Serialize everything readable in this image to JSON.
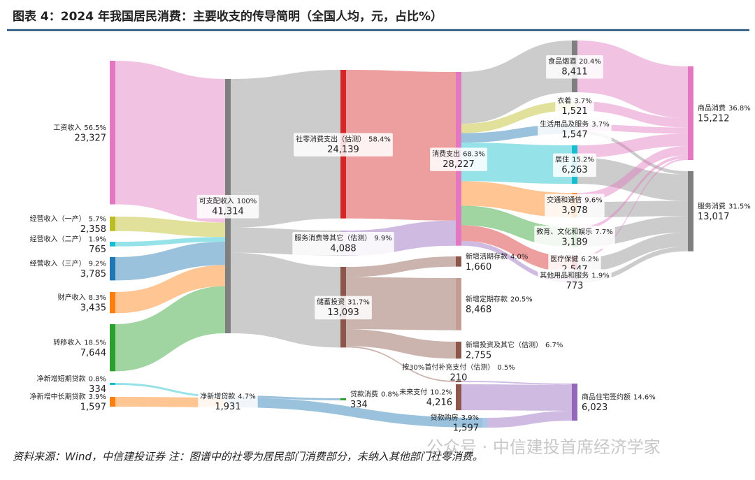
{
  "chart_data": {
    "type": "sankey",
    "title": "图表 4：2024 年我国居民消费：主要收支的传导简明（全国人均，元，占比%）",
    "note": "资料来源：Wind，中信建投证券 注：图谱中的社零为居民部门消费部分，未纳入其他部门社零消费。",
    "watermark": "公众号 · 中信建投首席经济学家",
    "nodes": [
      {
        "name": "工资收入",
        "share": 56.5,
        "share_label": "56.5%",
        "value": 23327,
        "value_label": "23,327",
        "color": "#e377c2"
      },
      {
        "name": "经营收入（一产）",
        "share": 5.7,
        "share_label": "5.7%",
        "value": 2358,
        "value_label": "2,358",
        "color": "#bcbd22"
      },
      {
        "name": "经营收入（二产）",
        "share": 1.9,
        "share_label": "1.9%",
        "value": 765,
        "color": "#17becf"
      },
      {
        "name": "经营收入（三产）",
        "share": 9.2,
        "share_label": "9.2%",
        "value": 3785,
        "value_label": "3,785",
        "color": "#1f77b4"
      },
      {
        "name": "财产收入",
        "share": 8.3,
        "share_label": "8.3%",
        "value": 3435,
        "value_label": "3,435",
        "color": "#ff7f0e"
      },
      {
        "name": "转移收入",
        "share": 18.5,
        "share_label": "18.5%",
        "value": 7644,
        "value_label": "7,644",
        "color": "#2ca02c"
      },
      {
        "name": "净新增短期贷款",
        "share": 0.8,
        "share_label": "0.8%",
        "value": 334,
        "color": "#17becf"
      },
      {
        "name": "净新增中长期贷款",
        "share": 3.9,
        "share_label": "3.9%",
        "value": 1597,
        "value_label": "1,597",
        "color": "#ff7f0e"
      },
      {
        "name": "可支配收入",
        "share": 100,
        "share_label": "100%",
        "value": 41314,
        "value_label": "41,314",
        "color": "#7f7f7f"
      },
      {
        "name": "净新增贷款",
        "share": 4.7,
        "share_label": "4.7%",
        "value": 1931,
        "value_label": "1,931",
        "color": "#aec7e8"
      },
      {
        "name": "社零消费支出（估测）",
        "share": 58.4,
        "share_label": "58.4%",
        "value": 24139,
        "value_label": "24,139",
        "color": "#d62728"
      },
      {
        "name": "服务消费等其它（估测）",
        "share": 9.9,
        "share_label": "9.9%",
        "value": 4088,
        "value_label": "4,088",
        "color": "#c5b0d5"
      },
      {
        "name": "储蓄投资",
        "share": 31.7,
        "share_label": "31.7%",
        "value": 13093,
        "value_label": "13,093",
        "color": "#8c564b"
      },
      {
        "name": "贷款消费",
        "share": 0.8,
        "share_label": "0.8%",
        "value": 334,
        "color": "#2ca02c"
      },
      {
        "name": "消费支出",
        "share": 68.3,
        "share_label": "68.3%",
        "value": 28227,
        "value_label": "28,227",
        "color": "#e377c2"
      },
      {
        "name": "新增活期存款",
        "share": 4.0,
        "share_label": "4.0%",
        "value": 1660,
        "value_label": "1,660",
        "color": "#8c564b"
      },
      {
        "name": "新增定期存款",
        "share": 20.5,
        "share_label": "20.5%",
        "value": 8468,
        "value_label": "8,468",
        "color": "#c49c94"
      },
      {
        "name": "新增投资及其它（估测）",
        "share": 6.7,
        "share_label": "6.7%",
        "value": 2755,
        "value_label": "2,755",
        "color": "#8c564b"
      },
      {
        "name": "按30%首付补充支付（估测）",
        "share": 0.5,
        "share_label": "0.5%",
        "value": 210,
        "color": "#8c564b"
      },
      {
        "name": "未来支付",
        "share": 10.2,
        "share_label": "10.2%",
        "value": 4216,
        "value_label": "4,216",
        "color": "#8c564b"
      },
      {
        "name": "贷款购房",
        "share": 3.9,
        "share_label": "3.9%",
        "value": 1597,
        "value_label": "1,597",
        "color": "#aec7e8"
      },
      {
        "name": "食品烟酒",
        "share": 20.4,
        "share_label": "20.4%",
        "value": 8411,
        "value_label": "8,411",
        "color": "#7f7f7f"
      },
      {
        "name": "衣着",
        "share": 3.7,
        "share_label": "3.7%",
        "value": 1521,
        "value_label": "1,521",
        "color": "#dbdb8d"
      },
      {
        "name": "生活用品及服务",
        "share": 3.7,
        "share_label": "3.7%",
        "value": 1547,
        "value_label": "1,547",
        "color": "#9ecae1"
      },
      {
        "name": "居住",
        "share": 15.2,
        "share_label": "15.2%",
        "value": 6263,
        "value_label": "6,263",
        "color": "#17becf"
      },
      {
        "name": "交通和通信",
        "share": 9.6,
        "share_label": "9.6%",
        "value": 3978,
        "value_label": "3,978",
        "color": "#ff7f0e"
      },
      {
        "name": "教育、文化和娱乐",
        "share": 7.7,
        "share_label": "7.7%",
        "value": 3189,
        "value_label": "3,189",
        "color": "#2ca02c"
      },
      {
        "name": "医疗保健",
        "share": 6.2,
        "share_label": "6.2%",
        "value": 2547,
        "value_label": "2,547",
        "color": "#d62728"
      },
      {
        "name": "其他用品和服务",
        "share": 1.9,
        "share_label": "1.9%",
        "value": 773,
        "color": "#9467bd"
      },
      {
        "name": "商品住宅签约额",
        "share": 14.6,
        "share_label": "14.6%",
        "value": 6023,
        "value_label": "6,023",
        "color": "#9467bd"
      },
      {
        "name": "商品消费",
        "share": 36.8,
        "share_label": "36.8%",
        "value": 15212,
        "value_label": "15,212",
        "color": "#e377c2"
      },
      {
        "name": "服务消费",
        "share": 31.5,
        "share_label": "31.5%",
        "value": 13017,
        "value_label": "13,017",
        "color": "#7f7f7f"
      }
    ],
    "links": [
      {
        "source": 0,
        "target": 8,
        "value": 23327,
        "color": "#e377c2"
      },
      {
        "source": 1,
        "target": 8,
        "value": 2358,
        "color": "#bcbd22"
      },
      {
        "source": 2,
        "target": 8,
        "value": 765,
        "color": "#17becf"
      },
      {
        "source": 3,
        "target": 8,
        "value": 3785,
        "color": "#1f77b4"
      },
      {
        "source": 4,
        "target": 8,
        "value": 3435,
        "color": "#ff7f0e"
      },
      {
        "source": 5,
        "target": 8,
        "value": 7644,
        "color": "#2ca02c"
      },
      {
        "source": 6,
        "target": 9,
        "value": 334,
        "color": "#17becf"
      },
      {
        "source": 7,
        "target": 9,
        "value": 1597,
        "color": "#ff7f0e"
      },
      {
        "source": 8,
        "target": 10,
        "value": 24139,
        "color": "#8f8f8f"
      },
      {
        "source": 8,
        "target": 11,
        "value": 4088,
        "color": "#8f8f8f"
      },
      {
        "source": 8,
        "target": 12,
        "value": 13093,
        "color": "#8f8f8f"
      },
      {
        "source": 9,
        "target": 13,
        "value": 334,
        "color": "#1f77b4"
      },
      {
        "source": 9,
        "target": 20,
        "value": 1597,
        "color": "#1f77b4"
      },
      {
        "source": 10,
        "target": 14,
        "value": 24139,
        "color": "#d62728"
      },
      {
        "source": 11,
        "target": 14,
        "value": 4088,
        "color": "#9467bd"
      },
      {
        "source": 12,
        "target": 15,
        "value": 1660,
        "color": "#8c564b"
      },
      {
        "source": 12,
        "target": 16,
        "value": 8468,
        "color": "#8c564b"
      },
      {
        "source": 12,
        "target": 17,
        "value": 2755,
        "color": "#8c564b"
      },
      {
        "source": 12,
        "target": 18,
        "value": 210,
        "color": "#8c564b"
      },
      {
        "source": 18,
        "target": 29,
        "value": 210,
        "color": "#9467bd"
      },
      {
        "source": 19,
        "target": 29,
        "value": 4216,
        "color": "#9467bd"
      },
      {
        "source": 20,
        "target": 29,
        "value": 1597,
        "color": "#9467bd"
      },
      {
        "source": 14,
        "target": 21,
        "value": 8411,
        "color": "#8f8f8f"
      },
      {
        "source": 14,
        "target": 22,
        "value": 1521,
        "color": "#bcbd22"
      },
      {
        "source": 14,
        "target": 23,
        "value": 1547,
        "color": "#1f77b4"
      },
      {
        "source": 14,
        "target": 24,
        "value": 6263,
        "color": "#17becf"
      },
      {
        "source": 14,
        "target": 25,
        "value": 3978,
        "color": "#ff7f0e"
      },
      {
        "source": 14,
        "target": 26,
        "value": 3189,
        "color": "#2ca02c"
      },
      {
        "source": 14,
        "target": 27,
        "value": 2547,
        "color": "#d62728"
      },
      {
        "source": 14,
        "target": 28,
        "value": 773,
        "color": "#9467bd"
      },
      {
        "source": 21,
        "target": 30,
        "value": 8411,
        "color": "#e377c2"
      },
      {
        "source": 22,
        "target": 30,
        "value": 1521,
        "color": "#e377c2"
      },
      {
        "source": 23,
        "target": 30,
        "value": 1000,
        "color": "#e377c2"
      },
      {
        "source": 23,
        "target": 31,
        "value": 547,
        "color": "#8f8f8f"
      },
      {
        "source": 24,
        "target": 30,
        "value": 2000,
        "color": "#e377c2"
      },
      {
        "source": 24,
        "target": 31,
        "value": 4263,
        "color": "#8f8f8f"
      },
      {
        "source": 25,
        "target": 30,
        "value": 1500,
        "color": "#e377c2"
      },
      {
        "source": 25,
        "target": 31,
        "value": 2478,
        "color": "#8f8f8f"
      },
      {
        "source": 26,
        "target": 30,
        "value": 500,
        "color": "#e377c2"
      },
      {
        "source": 26,
        "target": 31,
        "value": 2689,
        "color": "#8f8f8f"
      },
      {
        "source": 27,
        "target": 30,
        "value": 280,
        "color": "#e377c2"
      },
      {
        "source": 27,
        "target": 31,
        "value": 2267,
        "color": "#8f8f8f"
      },
      {
        "source": 28,
        "target": 31,
        "value": 773,
        "color": "#8f8f8f"
      }
    ]
  }
}
